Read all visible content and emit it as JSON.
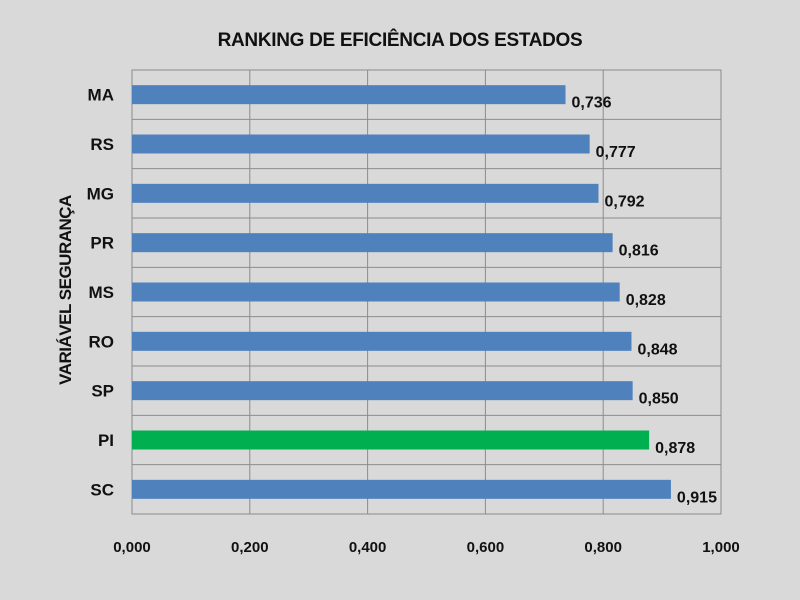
{
  "chart_data": {
    "type": "bar",
    "orientation": "horizontal",
    "title": "RANKING DE EFICIÊNCIA DOS ESTADOS",
    "ylabel": "VARIÁVEL SEGURANÇA",
    "xlabel": "",
    "categories": [
      "MA",
      "RS",
      "MG",
      "PR",
      "MS",
      "RO",
      "SP",
      "PI",
      "SC"
    ],
    "values": [
      0.736,
      0.777,
      0.792,
      0.816,
      0.828,
      0.848,
      0.85,
      0.878,
      0.915
    ],
    "data_labels": [
      "0,736",
      "0,777",
      "0,792",
      "0,816",
      "0,828",
      "0,848",
      "0,850",
      "0,878",
      "0,915"
    ],
    "xlim": [
      0,
      1
    ],
    "x_ticks": [
      0,
      0.2,
      0.4,
      0.6,
      0.8,
      1.0
    ],
    "x_tick_labels": [
      "0,000",
      "0,200",
      "0,400",
      "0,600",
      "0,800",
      "1,000"
    ],
    "grid": "vertical",
    "legend": "none",
    "colors": {
      "default_bar": "#4f81bd",
      "highlight_bar": "#00b050",
      "background": "#d9d9d9",
      "gridline": "#8c8c8c"
    },
    "highlight_category": "PI"
  }
}
